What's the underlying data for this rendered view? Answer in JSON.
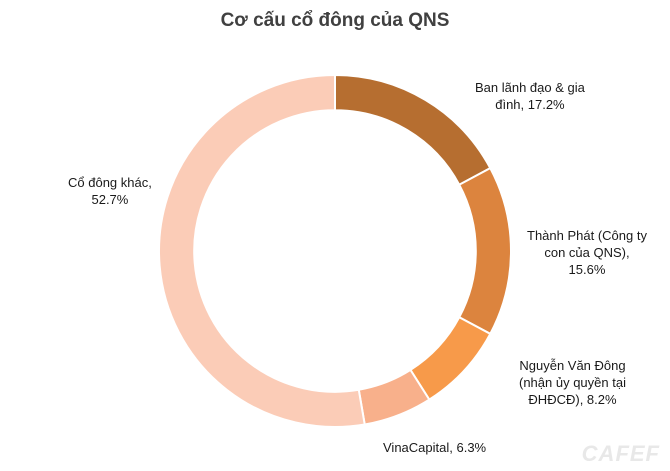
{
  "chart_data": {
    "type": "pie",
    "title": "Cơ cấu cổ đông của QNS",
    "categories": [
      "Ban lãnh đạo & gia đình",
      "Thành Phát (Công ty con của QNS)",
      "Nguyễn Văn Đông (nhận ủy quyền tại ĐHĐCĐ)",
      "VinaCapital",
      "Cổ đông khác"
    ],
    "values": [
      17.2,
      15.6,
      8.2,
      6.3,
      52.7
    ],
    "colors": [
      "#b66e30",
      "#dc843e",
      "#f79a4a",
      "#f8b08b",
      "#fbccb7"
    ],
    "labels": [
      "Ban lãnh đạo & gia\nđình, 17.2%",
      "Thành Phát (Công ty\ncon của QNS),\n15.6%",
      "Nguyễn Văn Đông\n(nhận ủy quyền tại\nĐHĐCĐ), 8.2%",
      "VinaCapital, 6.3%",
      "Cổ đông khác,\n52.7%"
    ],
    "inner_radius_ratio": 0.8,
    "legend": "none"
  },
  "watermark": "CAFEF"
}
